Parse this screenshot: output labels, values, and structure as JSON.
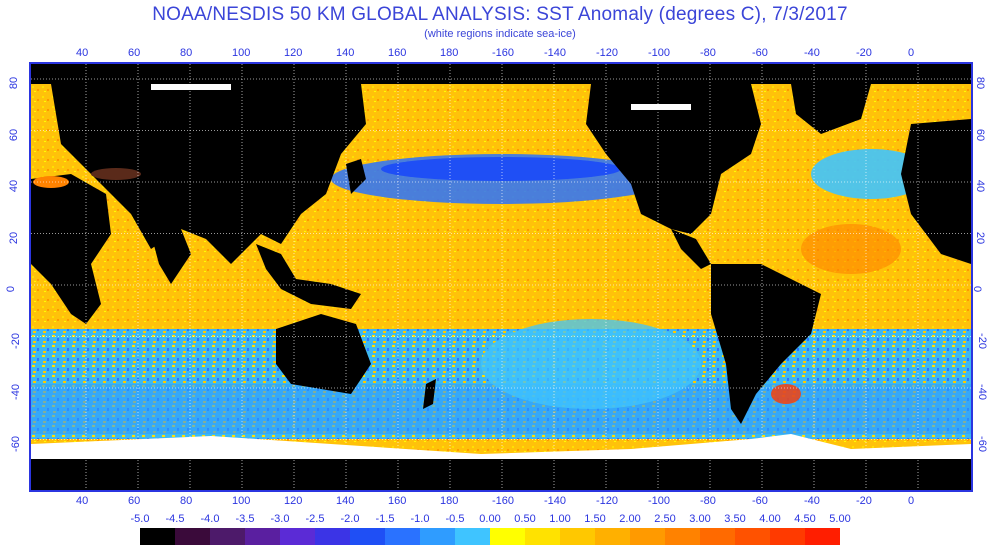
{
  "title": "NOAA/NESDIS 50 KM GLOBAL ANALYSIS: SST Anomaly (degrees C), 7/3/2017",
  "subtitle": "(white regions indicate sea-ice)",
  "lon_labels": [
    "40",
    "60",
    "80",
    "100",
    "120",
    "140",
    "160",
    "180",
    "-160",
    "-140",
    "-120",
    "-100",
    "-80",
    "-60",
    "-40",
    "-20",
    "0"
  ],
  "lat_labels": [
    "80",
    "60",
    "40",
    "20",
    "0",
    "-20",
    "-40",
    "-60"
  ],
  "colorbar": {
    "labels": [
      "-5.0",
      "-4.5",
      "-4.0",
      "-3.5",
      "-3.0",
      "-2.5",
      "-2.0",
      "-1.5",
      "-1.0",
      "-0.5",
      "0.00",
      "0.50",
      "1.00",
      "1.50",
      "2.00",
      "2.50",
      "3.00",
      "3.50",
      "4.00",
      "4.50",
      "5.00"
    ],
    "colors": [
      "#000000",
      "#3a0a3a",
      "#4d1a6a",
      "#5a1fa0",
      "#5b2bd6",
      "#3b34e6",
      "#1f4ff5",
      "#2a72ff",
      "#2f9cff",
      "#3fc4ff",
      "#ffff00",
      "#ffe200",
      "#ffc800",
      "#ffb000",
      "#ff9a00",
      "#ff8200",
      "#ff6a00",
      "#ff5200",
      "#ff3a00",
      "#ff1e00"
    ]
  },
  "colors": {
    "ocean_warm": "#ffc20a",
    "ocean_cool": "#3fb8f0",
    "land": "#000000",
    "sea_ice": "#ffffff",
    "frame": "#2b35e0"
  }
}
